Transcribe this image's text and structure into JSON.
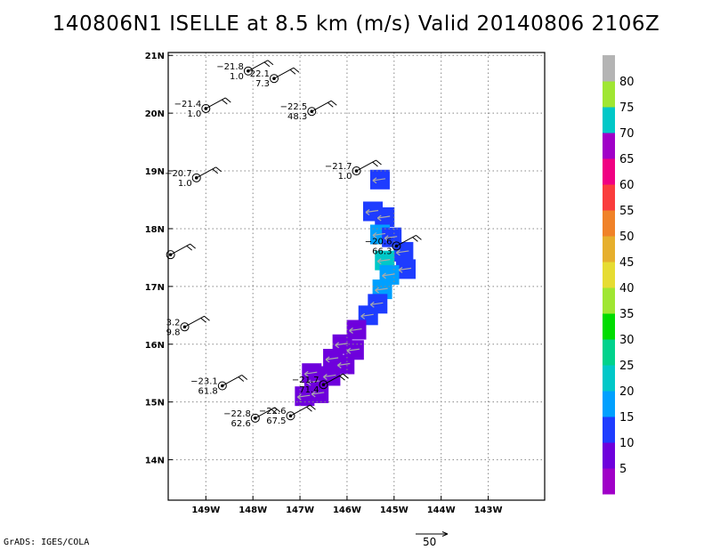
{
  "title": "140806N1 ISELLE at 8.5 km (m/s) Valid 20140806 2106Z",
  "footer": "GrADS: IGES/COLA",
  "chart_data": {
    "type": "scatter",
    "xlim": [
      -149.8,
      -141.8
    ],
    "ylim": [
      13.3,
      21.05
    ],
    "xticks": [
      -149,
      -148,
      -147,
      -146,
      -145,
      -144,
      -143
    ],
    "xtick_labels": [
      "149W",
      "148W",
      "147W",
      "146W",
      "145W",
      "144W",
      "143W"
    ],
    "yticks": [
      14,
      15,
      16,
      17,
      18,
      19,
      20,
      21
    ],
    "ytick_labels": [
      "14N",
      "15N",
      "16N",
      "17N",
      "18N",
      "19N",
      "20N",
      "21N"
    ],
    "grid": true,
    "colorbar": {
      "labels": [
        "5",
        "10",
        "15",
        "20",
        "25",
        "30",
        "35",
        "40",
        "45",
        "50",
        "55",
        "60",
        "65",
        "70",
        "75",
        "80"
      ],
      "colors": [
        "#a000c8",
        "#6e00dc",
        "#1e3cff",
        "#00a0ff",
        "#00c8c8",
        "#00d28c",
        "#00dc00",
        "#a0e632",
        "#e6dc32",
        "#e6af2d",
        "#f08228",
        "#fa3c3c",
        "#f00082",
        "#a000c8",
        "#00c8c8",
        "#a0e632",
        "#b4b4b4"
      ]
    },
    "reference_vector": {
      "label": "50"
    },
    "stations": [
      {
        "lon": -148.1,
        "lat": 20.73,
        "temp": "−21.8",
        "val": "1.0"
      },
      {
        "lon": -147.55,
        "lat": 20.6,
        "temp": "22.1",
        "val": "7.3"
      },
      {
        "lon": -149.0,
        "lat": 20.08,
        "temp": "−21.4",
        "val": "1.0"
      },
      {
        "lon": -146.75,
        "lat": 20.03,
        "temp": "−22.5",
        "val": "48.3"
      },
      {
        "lon": -149.2,
        "lat": 18.88,
        "temp": "−20.7",
        "val": "1.0"
      },
      {
        "lon": -145.8,
        "lat": 19.0,
        "temp": "−21.7",
        "val": "1.0"
      },
      {
        "lon": -149.75,
        "lat": 17.55,
        "temp": "",
        "val": ""
      },
      {
        "lon": -144.95,
        "lat": 17.7,
        "temp": "−20.6",
        "val": "66.3"
      },
      {
        "lon": -149.45,
        "lat": 16.3,
        "temp": "3.2",
        "val": "9.8"
      },
      {
        "lon": -148.65,
        "lat": 15.28,
        "temp": "−23.1",
        "val": "61.8"
      },
      {
        "lon": -146.5,
        "lat": 15.3,
        "temp": "−21.7",
        "val": "71.4"
      },
      {
        "lon": -147.2,
        "lat": 14.76,
        "temp": "−22.6",
        "val": "67.5"
      },
      {
        "lon": -147.95,
        "lat": 14.72,
        "temp": "−22.8",
        "val": "62.6"
      }
    ],
    "wind_cells": [
      {
        "lon": -145.3,
        "lat": 18.85,
        "spd": 14
      },
      {
        "lon": -145.45,
        "lat": 18.3,
        "spd": 14
      },
      {
        "lon": -145.2,
        "lat": 18.2,
        "spd": 14
      },
      {
        "lon": -145.3,
        "lat": 17.9,
        "spd": 15
      },
      {
        "lon": -145.05,
        "lat": 17.85,
        "spd": 14
      },
      {
        "lon": -144.8,
        "lat": 17.6,
        "spd": 14
      },
      {
        "lon": -144.75,
        "lat": 17.3,
        "spd": 14
      },
      {
        "lon": -145.2,
        "lat": 17.45,
        "spd": 20
      },
      {
        "lon": -145.1,
        "lat": 17.2,
        "spd": 16
      },
      {
        "lon": -145.25,
        "lat": 16.95,
        "spd": 15
      },
      {
        "lon": -145.35,
        "lat": 16.7,
        "spd": 10
      },
      {
        "lon": -145.55,
        "lat": 16.5,
        "spd": 10
      },
      {
        "lon": -145.8,
        "lat": 16.25,
        "spd": 7
      },
      {
        "lon": -146.1,
        "lat": 16.0,
        "spd": 6
      },
      {
        "lon": -145.85,
        "lat": 15.9,
        "spd": 5
      },
      {
        "lon": -146.3,
        "lat": 15.75,
        "spd": 5
      },
      {
        "lon": -146.05,
        "lat": 15.65,
        "spd": 5
      },
      {
        "lon": -146.35,
        "lat": 15.45,
        "spd": 5
      },
      {
        "lon": -146.7,
        "lat": 15.35,
        "spd": 5
      },
      {
        "lon": -146.6,
        "lat": 15.15,
        "spd": 5
      },
      {
        "lon": -146.9,
        "lat": 15.1,
        "spd": 5
      },
      {
        "lon": -146.75,
        "lat": 15.5,
        "spd": 5
      }
    ]
  }
}
